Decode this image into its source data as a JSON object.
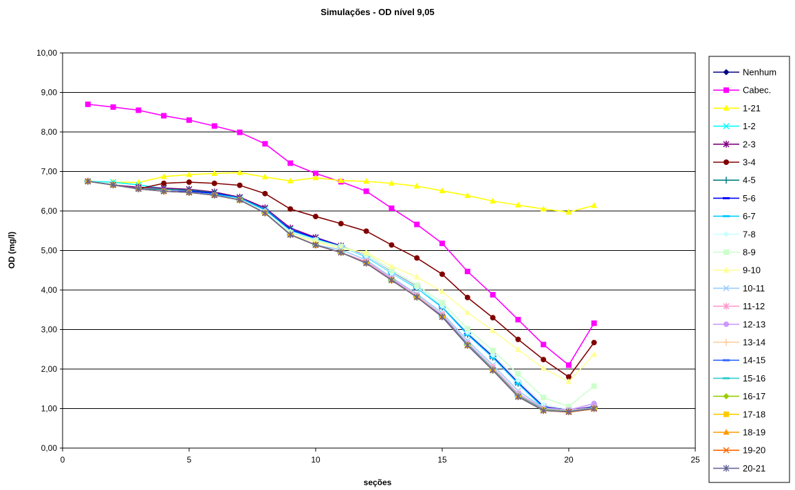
{
  "chart_data": {
    "type": "line",
    "title": "Simulações - OD nível 9,05",
    "xlabel": "seções",
    "ylabel": "OD (mg/l)",
    "xlim": [
      0,
      25
    ],
    "ylim": [
      0,
      10
    ],
    "x_ticks": [
      0,
      5,
      10,
      15,
      20,
      25
    ],
    "x_tick_labels": [
      "0",
      "5",
      "10",
      "15",
      "20",
      "25"
    ],
    "y_ticks": [
      0,
      1,
      2,
      3,
      4,
      5,
      6,
      7,
      8,
      9,
      10
    ],
    "y_tick_labels": [
      "0,00",
      "1,00",
      "2,00",
      "3,00",
      "4,00",
      "5,00",
      "6,00",
      "7,00",
      "8,00",
      "9,00",
      "10,00"
    ],
    "grid": "horizontal",
    "legend_position": "right",
    "x": [
      1,
      2,
      3,
      4,
      5,
      6,
      7,
      8,
      9,
      10,
      11,
      12,
      13,
      14,
      15,
      16,
      17,
      18,
      19,
      20,
      21
    ],
    "series": [
      {
        "name": "Nenhum",
        "color": "#000080",
        "marker": "diamond",
        "values": [
          6.75,
          6.66,
          6.56,
          6.5,
          6.47,
          6.4,
          6.28,
          5.95,
          5.4,
          5.14,
          4.95,
          4.68,
          4.25,
          3.82,
          3.32,
          2.6,
          1.97,
          1.3,
          0.95,
          0.92,
          1.0
        ]
      },
      {
        "name": "Cabec.",
        "color": "#FF00FF",
        "marker": "square",
        "values": [
          8.7,
          8.63,
          8.55,
          8.41,
          8.3,
          8.15,
          7.99,
          7.7,
          7.21,
          6.95,
          6.74,
          6.5,
          6.07,
          5.66,
          5.18,
          4.47,
          3.88,
          3.25,
          2.62,
          2.1,
          3.16
        ]
      },
      {
        "name": "1-21",
        "color": "#FFFF00",
        "marker": "triangle",
        "values": [
          6.75,
          6.73,
          6.72,
          6.87,
          6.92,
          6.95,
          6.97,
          6.86,
          6.76,
          6.84,
          6.77,
          6.75,
          6.7,
          6.63,
          6.51,
          6.39,
          6.25,
          6.15,
          6.05,
          5.97,
          6.14
        ]
      },
      {
        "name": "1-2",
        "color": "#00FFFF",
        "marker": "x",
        "values": [
          6.75,
          6.73,
          6.66,
          6.57,
          6.55,
          6.47,
          6.33,
          6.05,
          5.55,
          5.33,
          5.1,
          4.85,
          4.45,
          4.08,
          3.6,
          2.9,
          2.32,
          1.65,
          1.05,
          0.95,
          1.05
        ]
      },
      {
        "name": "2-3",
        "color": "#800080",
        "marker": "star",
        "values": [
          6.75,
          6.66,
          6.6,
          6.58,
          6.55,
          6.48,
          6.35,
          6.08,
          5.57,
          5.33,
          5.12,
          4.86,
          4.45,
          4.08,
          3.58,
          2.9,
          2.32,
          1.66,
          1.05,
          0.96,
          1.05
        ]
      },
      {
        "name": "3-4",
        "color": "#800000",
        "marker": "circle",
        "values": [
          6.75,
          6.66,
          6.56,
          6.7,
          6.73,
          6.7,
          6.65,
          6.44,
          6.05,
          5.86,
          5.68,
          5.49,
          5.14,
          4.81,
          4.4,
          3.81,
          3.3,
          2.75,
          2.24,
          1.8,
          2.67
        ]
      },
      {
        "name": "4-5",
        "color": "#008080",
        "marker": "plus",
        "values": [
          6.75,
          6.66,
          6.56,
          6.55,
          6.53,
          6.46,
          6.33,
          6.03,
          5.52,
          5.3,
          5.1,
          4.85,
          4.44,
          4.06,
          3.57,
          2.88,
          2.3,
          1.64,
          1.03,
          0.95,
          1.03
        ]
      },
      {
        "name": "5-6",
        "color": "#0000FF",
        "marker": "dash",
        "values": [
          6.75,
          6.66,
          6.56,
          6.5,
          6.5,
          6.45,
          6.33,
          6.03,
          5.53,
          5.31,
          5.11,
          4.85,
          4.44,
          4.07,
          3.58,
          2.89,
          2.31,
          1.65,
          1.04,
          0.95,
          1.04
        ]
      },
      {
        "name": "6-7",
        "color": "#00CCFF",
        "marker": "dash",
        "values": [
          6.75,
          6.66,
          6.56,
          6.5,
          6.47,
          6.42,
          6.33,
          6.02,
          5.5,
          5.29,
          5.1,
          4.84,
          4.43,
          4.05,
          3.56,
          2.87,
          2.29,
          1.63,
          1.02,
          0.94,
          1.02
        ]
      },
      {
        "name": "7-8",
        "color": "#CCFFFF",
        "marker": "diamond",
        "values": [
          6.75,
          6.66,
          6.56,
          6.5,
          6.47,
          6.4,
          6.28,
          6.0,
          5.48,
          5.27,
          5.09,
          4.86,
          4.44,
          4.07,
          3.6,
          2.93,
          2.36,
          1.72,
          1.1,
          0.98,
          1.1
        ]
      },
      {
        "name": "8-9",
        "color": "#CCFFCC",
        "marker": "square",
        "values": [
          6.75,
          6.66,
          6.56,
          6.5,
          6.47,
          6.4,
          6.28,
          5.95,
          5.45,
          5.26,
          5.1,
          4.92,
          4.5,
          4.12,
          3.68,
          3.02,
          2.47,
          1.88,
          1.28,
          1.05,
          1.57
        ]
      },
      {
        "name": "9-10",
        "color": "#FFFF99",
        "marker": "triangle",
        "values": [
          6.75,
          6.66,
          6.56,
          6.5,
          6.47,
          6.4,
          6.28,
          5.95,
          5.4,
          5.22,
          5.05,
          4.95,
          4.6,
          4.33,
          3.96,
          3.43,
          2.97,
          2.49,
          2.02,
          1.68,
          2.37
        ]
      },
      {
        "name": "10-11",
        "color": "#99CCFF",
        "marker": "x",
        "values": [
          6.75,
          6.66,
          6.56,
          6.5,
          6.47,
          6.4,
          6.28,
          5.95,
          5.4,
          5.14,
          5.02,
          4.76,
          4.32,
          3.9,
          3.42,
          2.72,
          2.1,
          1.45,
          1.02,
          0.96,
          1.02
        ]
      },
      {
        "name": "11-12",
        "color": "#FF99CC",
        "marker": "star",
        "values": [
          6.75,
          6.66,
          6.56,
          6.5,
          6.47,
          6.4,
          6.28,
          5.95,
          5.4,
          5.14,
          4.95,
          4.72,
          4.29,
          3.86,
          3.37,
          2.66,
          2.04,
          1.38,
          1.0,
          0.95,
          1.02
        ]
      },
      {
        "name": "12-13",
        "color": "#CC99FF",
        "marker": "circle",
        "values": [
          6.75,
          6.66,
          6.56,
          6.5,
          6.47,
          6.4,
          6.28,
          5.95,
          5.4,
          5.14,
          4.95,
          4.68,
          4.27,
          3.85,
          3.36,
          2.65,
          2.03,
          1.37,
          1.0,
          0.96,
          1.13
        ]
      },
      {
        "name": "13-14",
        "color": "#FFCC99",
        "marker": "plus",
        "values": [
          6.75,
          6.66,
          6.56,
          6.5,
          6.47,
          6.4,
          6.28,
          5.95,
          5.4,
          5.14,
          4.95,
          4.68,
          4.25,
          3.84,
          3.35,
          2.64,
          2.02,
          1.35,
          0.99,
          0.94,
          1.02
        ]
      },
      {
        "name": "14-15",
        "color": "#3366FF",
        "marker": "dash",
        "values": [
          6.75,
          6.66,
          6.56,
          6.5,
          6.47,
          6.4,
          6.28,
          5.95,
          5.4,
          5.14,
          4.95,
          4.68,
          4.25,
          3.82,
          3.34,
          2.63,
          2.0,
          1.33,
          0.98,
          0.93,
          1.01
        ]
      },
      {
        "name": "15-16",
        "color": "#33CCCC",
        "marker": "dash",
        "values": [
          6.75,
          6.66,
          6.56,
          6.5,
          6.47,
          6.4,
          6.28,
          5.95,
          5.4,
          5.14,
          4.95,
          4.68,
          4.25,
          3.82,
          3.32,
          2.62,
          1.99,
          1.32,
          0.97,
          0.93,
          1.01
        ]
      },
      {
        "name": "16-17",
        "color": "#99CC00",
        "marker": "diamond",
        "values": [
          6.75,
          6.66,
          6.56,
          6.5,
          6.47,
          6.4,
          6.28,
          5.95,
          5.4,
          5.14,
          4.95,
          4.68,
          4.25,
          3.82,
          3.32,
          2.6,
          1.98,
          1.31,
          0.96,
          0.92,
          1.0
        ]
      },
      {
        "name": "17-18",
        "color": "#FFCC00",
        "marker": "square",
        "values": [
          6.75,
          6.66,
          6.56,
          6.5,
          6.47,
          6.4,
          6.28,
          5.95,
          5.4,
          5.14,
          4.95,
          4.68,
          4.25,
          3.82,
          3.32,
          2.6,
          1.97,
          1.3,
          0.96,
          0.92,
          1.0
        ]
      },
      {
        "name": "18-19",
        "color": "#FF9900",
        "marker": "triangle",
        "values": [
          6.75,
          6.66,
          6.56,
          6.5,
          6.47,
          6.4,
          6.28,
          5.95,
          5.4,
          5.14,
          4.95,
          4.68,
          4.25,
          3.82,
          3.32,
          2.6,
          1.97,
          1.3,
          0.95,
          0.92,
          1.0
        ]
      },
      {
        "name": "19-20",
        "color": "#FF6600",
        "marker": "x",
        "values": [
          6.75,
          6.66,
          6.56,
          6.5,
          6.47,
          6.4,
          6.28,
          5.95,
          5.4,
          5.14,
          4.95,
          4.68,
          4.25,
          3.82,
          3.32,
          2.6,
          1.97,
          1.3,
          0.95,
          0.91,
          0.99
        ]
      },
      {
        "name": "20-21",
        "color": "#666699",
        "marker": "star",
        "values": [
          6.75,
          6.66,
          6.56,
          6.5,
          6.47,
          6.4,
          6.28,
          5.95,
          5.4,
          5.14,
          4.95,
          4.68,
          4.25,
          3.82,
          3.32,
          2.6,
          1.97,
          1.3,
          0.95,
          0.92,
          1.0
        ]
      }
    ]
  }
}
